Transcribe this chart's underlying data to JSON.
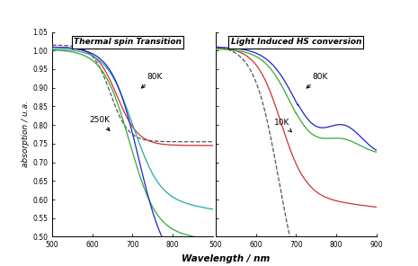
{
  "title_left": "Thermal spin Transition",
  "title_right": "Light Induced HS conversion",
  "xlabel": "Wavelength / nm",
  "ylabel": "absorption / u.a.",
  "xlim_left": [
    500,
    900
  ],
  "xlim_right": [
    500,
    900
  ],
  "ylim": [
    0.5,
    1.05
  ],
  "yticks": [
    0.5,
    0.55,
    0.6,
    0.65,
    0.7,
    0.75,
    0.8,
    0.85,
    0.9,
    0.95,
    1.0,
    1.05
  ],
  "xticks_left": [
    500,
    600,
    700,
    800
  ],
  "xticks_right": [
    500,
    600,
    700,
    800,
    900
  ],
  "col_dark": "#555555",
  "col_red": "#cc3333",
  "col_green": "#33aa33",
  "col_blue": "#2222cc",
  "col_cyan": "#22aaaa"
}
